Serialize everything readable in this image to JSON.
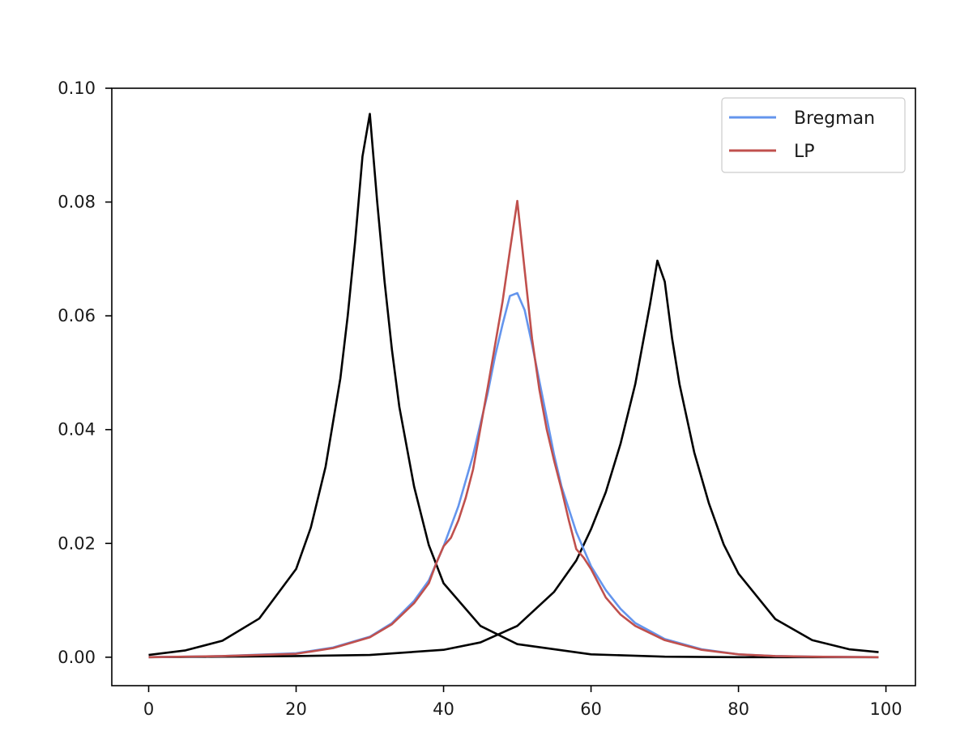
{
  "chart_data": {
    "type": "line",
    "title": "",
    "xlabel": "",
    "ylabel": "",
    "xlim": [
      -5,
      104
    ],
    "ylim": [
      -0.005,
      0.1
    ],
    "x_ticks": [
      0,
      20,
      40,
      60,
      80,
      100
    ],
    "x_tick_labels": [
      "0",
      "20",
      "40",
      "60",
      "80",
      "100"
    ],
    "y_ticks": [
      0.0,
      0.02,
      0.04,
      0.06,
      0.08,
      0.1
    ],
    "y_tick_labels": [
      "0.00",
      "0.02",
      "0.04",
      "0.06",
      "0.08",
      "0.10"
    ],
    "grid": false,
    "legend_position": "top-right",
    "legend": [
      {
        "label": "Bregman",
        "color": "#6495ed"
      },
      {
        "label": "LP",
        "color": "#c0504d"
      }
    ],
    "series": [
      {
        "color": "#000000",
        "x": [
          0,
          5,
          10,
          15,
          20,
          22,
          24,
          26,
          27,
          28,
          29,
          30,
          31,
          32,
          33,
          34,
          36,
          38,
          40,
          45,
          50,
          60,
          70,
          80,
          90,
          99
        ],
        "y": [
          0.0004,
          0.0012,
          0.0029,
          0.0068,
          0.0155,
          0.0228,
          0.0335,
          0.049,
          0.06,
          0.073,
          0.088,
          0.0955,
          0.08,
          0.066,
          0.054,
          0.044,
          0.03,
          0.0197,
          0.013,
          0.0055,
          0.0023,
          0.0005,
          0.0001,
          0.0,
          0.0,
          0.0
        ]
      },
      {
        "color": "#000000",
        "x": [
          0,
          10,
          20,
          30,
          40,
          45,
          50,
          55,
          58,
          60,
          62,
          64,
          66,
          67,
          68,
          69,
          70,
          71,
          72,
          74,
          76,
          78,
          80,
          85,
          90,
          95,
          99
        ],
        "y": [
          0.0,
          0.0001,
          0.0002,
          0.0004,
          0.0013,
          0.0026,
          0.0055,
          0.0115,
          0.017,
          0.0225,
          0.029,
          0.0375,
          0.048,
          0.055,
          0.062,
          0.0697,
          0.066,
          0.056,
          0.048,
          0.036,
          0.027,
          0.0198,
          0.0147,
          0.0067,
          0.003,
          0.0014,
          0.0009
        ]
      },
      {
        "name": "Bregman",
        "color": "#6495ed",
        "x": [
          0,
          10,
          20,
          25,
          30,
          33,
          36,
          38,
          40,
          42,
          44,
          46,
          47,
          48,
          49,
          50,
          51,
          52,
          53,
          54,
          55,
          56,
          58,
          60,
          62,
          64,
          66,
          70,
          75,
          80,
          85,
          90,
          99
        ],
        "y": [
          0.0,
          0.0002,
          0.0007,
          0.0017,
          0.0036,
          0.006,
          0.0099,
          0.0135,
          0.0195,
          0.0265,
          0.0355,
          0.0465,
          0.053,
          0.0585,
          0.0635,
          0.064,
          0.061,
          0.055,
          0.0485,
          0.042,
          0.0355,
          0.03,
          0.022,
          0.016,
          0.0118,
          0.0085,
          0.006,
          0.0032,
          0.0014,
          0.0005,
          0.0002,
          0.0001,
          0.0
        ]
      },
      {
        "name": "LP",
        "color": "#c0504d",
        "x": [
          0,
          10,
          20,
          25,
          30,
          33,
          36,
          38,
          39,
          40,
          41,
          42,
          43,
          44,
          46,
          47,
          48,
          49,
          50,
          51,
          52,
          53,
          54,
          55,
          56,
          57,
          58,
          59,
          60,
          62,
          64,
          66,
          70,
          75,
          80,
          85,
          90,
          99
        ],
        "y": [
          0.0,
          0.0002,
          0.0006,
          0.0016,
          0.0035,
          0.0058,
          0.0095,
          0.013,
          0.0165,
          0.0195,
          0.021,
          0.024,
          0.028,
          0.033,
          0.0475,
          0.055,
          0.0625,
          0.0715,
          0.0802,
          0.068,
          0.056,
          0.047,
          0.04,
          0.0345,
          0.0295,
          0.024,
          0.019,
          0.0175,
          0.0155,
          0.0105,
          0.0075,
          0.0055,
          0.003,
          0.0013,
          0.0005,
          0.0002,
          0.0001,
          0.0
        ]
      }
    ]
  }
}
